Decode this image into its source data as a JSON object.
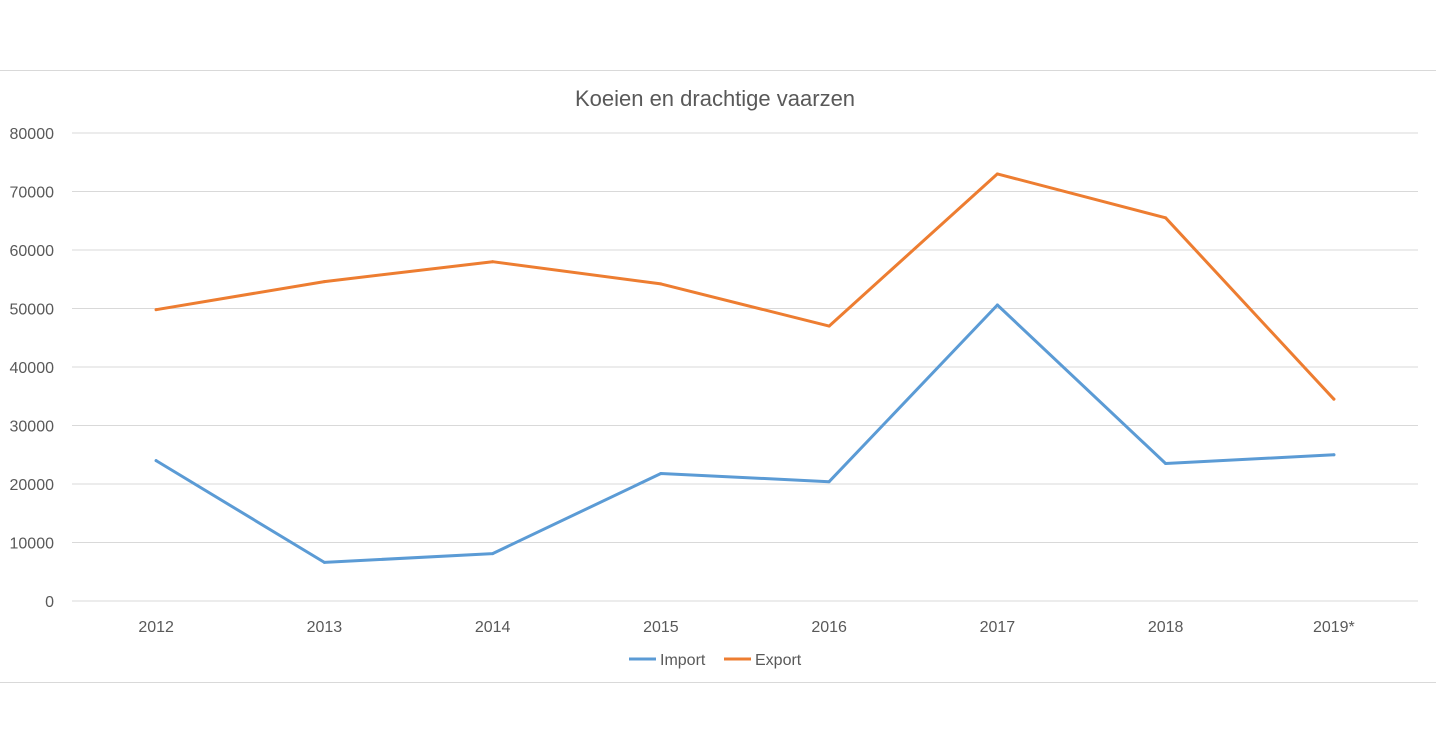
{
  "chart_data": {
    "type": "line",
    "title": "Koeien en drachtige vaarzen",
    "xlabel": "",
    "ylabel": "",
    "categories": [
      "2012",
      "2013",
      "2014",
      "2015",
      "2016",
      "2017",
      "2018",
      "2019*"
    ],
    "ylim": [
      0,
      80000
    ],
    "yticks": [
      "0",
      "10000",
      "20000",
      "30000",
      "40000",
      "50000",
      "60000",
      "70000",
      "80000"
    ],
    "grid": true,
    "legend_position": "bottom",
    "series": [
      {
        "name": "Import",
        "color": "#5b9bd5",
        "values": [
          24000,
          6600,
          8100,
          21800,
          20400,
          50600,
          23500,
          25000
        ]
      },
      {
        "name": "Export",
        "color": "#ed7d31",
        "values": [
          49800,
          54600,
          58000,
          54200,
          47000,
          73000,
          65500,
          34500
        ]
      }
    ]
  }
}
